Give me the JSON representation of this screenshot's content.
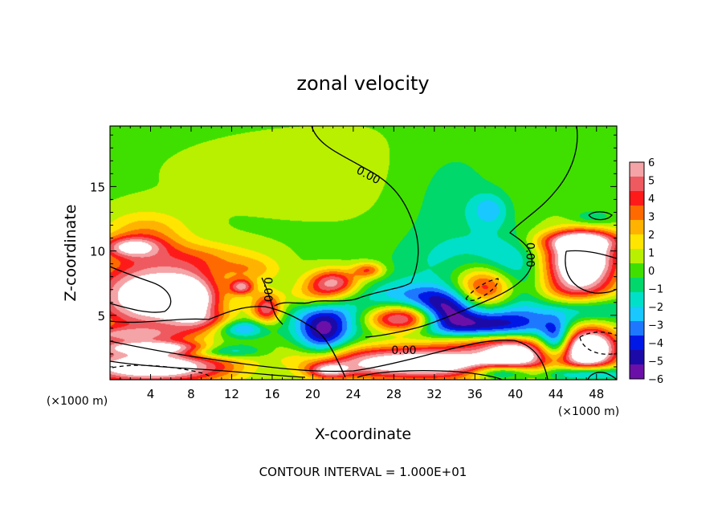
{
  "chart_data": {
    "type": "heatmap",
    "title": "zonal velocity",
    "xlabel": "X-coordinate",
    "ylabel": "Z-coordinate",
    "x_unit_note": "(×1000 m)",
    "x_unit_note_right": "(×1000 m)",
    "footer": "CONTOUR INTERVAL = 1.000E+01",
    "xlim": [
      0,
      50
    ],
    "ylim": [
      0,
      19.7
    ],
    "x_ticks": [
      4,
      8,
      12,
      16,
      20,
      24,
      28,
      32,
      36,
      40,
      44,
      48
    ],
    "y_ticks": [
      5,
      10,
      15
    ],
    "colorbar": {
      "range": [
        -6,
        6
      ],
      "tick_values": [
        6,
        5,
        4,
        3,
        2,
        1,
        0,
        -1,
        -2,
        -3,
        -4,
        -5,
        -6
      ],
      "colors": [
        "#f4a3a6",
        "#ee5a5f",
        "#ff1a1a",
        "#ff6a00",
        "#ffb300",
        "#ffe500",
        "#b9f000",
        "#3fe000",
        "#00d86b",
        "#00e0c8",
        "#18c8ff",
        "#1e78ff",
        "#0018e6",
        "#1c0aa8",
        "#6a10a8"
      ]
    },
    "contour_labels": [
      {
        "text": "0.00",
        "x": 25.5,
        "z": 15.9
      },
      {
        "text": "0.00",
        "x": 15.6,
        "z": 7.0
      },
      {
        "text": "0.00",
        "x": 41.5,
        "z": 9.7
      },
      {
        "text": "0.00",
        "x": 29.0,
        "z": 2.3
      }
    ],
    "blobs": [
      {
        "x": 24,
        "z": 16,
        "rx": 30,
        "ry": 6,
        "v": 0.6
      },
      {
        "x": 34,
        "z": 14,
        "rx": 5,
        "ry": 5,
        "v": -1.3
      },
      {
        "x": 37.5,
        "z": 13.2,
        "rx": 1.8,
        "ry": 1.3,
        "v": -2.2
      },
      {
        "x": 32,
        "z": 9,
        "rx": 5,
        "ry": 2.5,
        "v": -1.0
      },
      {
        "x": 3.5,
        "z": 11.5,
        "rx": 4,
        "ry": 1.6,
        "v": 2.2
      },
      {
        "x": 9,
        "z": 9.5,
        "rx": 6,
        "ry": 1.2,
        "v": 1.8
      },
      {
        "x": 14,
        "z": 8.5,
        "rx": 3,
        "ry": 1.0,
        "v": 1.8
      },
      {
        "x": 2,
        "z": 10.3,
        "rx": 3,
        "ry": 0.8,
        "v": 4.5
      },
      {
        "x": 4,
        "z": 6.5,
        "rx": 6,
        "ry": 2.8,
        "v": 8
      },
      {
        "x": 8,
        "z": 6.2,
        "rx": 2.5,
        "ry": 1.8,
        "v": 4.5
      },
      {
        "x": 1,
        "z": 3.5,
        "rx": 6,
        "ry": 0.6,
        "v": 3.5
      },
      {
        "x": 5,
        "z": 2.5,
        "rx": 7,
        "ry": 0.5,
        "v": 5
      },
      {
        "x": 11,
        "z": 2.3,
        "rx": 4,
        "ry": 0.6,
        "v": -4.5
      },
      {
        "x": 4,
        "z": 1.0,
        "rx": 8,
        "ry": 1.3,
        "v": 8
      },
      {
        "x": 16,
        "z": 1.0,
        "rx": 4,
        "ry": 1.0,
        "v": -1.5
      },
      {
        "x": 13,
        "z": 7.2,
        "rx": 1.2,
        "ry": 0.6,
        "v": 4.5
      },
      {
        "x": 15.5,
        "z": 5.5,
        "rx": 1.5,
        "ry": 1.2,
        "v": 5
      },
      {
        "x": 13,
        "z": 4.0,
        "rx": 2.5,
        "ry": 0.7,
        "v": -3.5
      },
      {
        "x": 10,
        "z": 4.5,
        "rx": 3,
        "ry": 0.8,
        "v": 2.0
      },
      {
        "x": 22,
        "z": 7.6,
        "rx": 2.5,
        "ry": 1.0,
        "v": 5
      },
      {
        "x": 20.5,
        "z": 6.5,
        "rx": 3,
        "ry": 1.0,
        "v": 2.5
      },
      {
        "x": 25.5,
        "z": 8.5,
        "rx": 1.5,
        "ry": 0.6,
        "v": 3.5
      },
      {
        "x": 21,
        "z": 3.5,
        "rx": 2.5,
        "ry": 1.8,
        "v": -4.5
      },
      {
        "x": 22.5,
        "z": 5,
        "rx": 5,
        "ry": 1.5,
        "v": -2.5
      },
      {
        "x": 29,
        "z": 6.5,
        "rx": 4,
        "ry": 1.2,
        "v": -2.2
      },
      {
        "x": 29,
        "z": 4.7,
        "rx": 4,
        "ry": 1.1,
        "v": 8
      },
      {
        "x": 33,
        "z": 5.5,
        "rx": 3,
        "ry": 1.5,
        "v": -5.5
      },
      {
        "x": 37.5,
        "z": 7.2,
        "rx": 3.2,
        "ry": 1.8,
        "v": 8
      },
      {
        "x": 39,
        "z": 7.5,
        "rx": 3.5,
        "ry": 2.8,
        "v": -5
      },
      {
        "x": 36,
        "z": 4.2,
        "rx": 8,
        "ry": 1.2,
        "v": -4.5
      },
      {
        "x": 36,
        "z": 3.0,
        "rx": 5,
        "ry": 0.8,
        "v": 2.5
      },
      {
        "x": 31,
        "z": 1.3,
        "rx": 12,
        "ry": 1.3,
        "v": 8
      },
      {
        "x": 40,
        "z": 2.2,
        "rx": 3,
        "ry": 1.2,
        "v": 5
      },
      {
        "x": 38.5,
        "z": 0.6,
        "rx": 3,
        "ry": 0.6,
        "v": -5
      },
      {
        "x": 21.5,
        "z": 0.7,
        "rx": 2,
        "ry": 0.6,
        "v": 4
      },
      {
        "x": 46.5,
        "z": 9.3,
        "rx": 3.5,
        "ry": 1.9,
        "v": 9
      },
      {
        "x": 46.5,
        "z": 10.8,
        "rx": 4,
        "ry": 0.8,
        "v": 4.5
      },
      {
        "x": 46,
        "z": 7.0,
        "rx": 4,
        "ry": 1.5,
        "v": 3.5
      },
      {
        "x": 47,
        "z": 5.5,
        "rx": 5,
        "ry": 1.0,
        "v": -2.5
      },
      {
        "x": 47.3,
        "z": 2.5,
        "rx": 2.8,
        "ry": 1.7,
        "v": 9
      },
      {
        "x": 44,
        "z": 3.0,
        "rx": 1.5,
        "ry": 1.5,
        "v": -4.5
      },
      {
        "x": 47,
        "z": 0.5,
        "rx": 4,
        "ry": 0.6,
        "v": -4.5
      },
      {
        "x": 47.5,
        "z": 12.6,
        "rx": 2,
        "ry": 0.6,
        "v": -1.5
      }
    ]
  }
}
